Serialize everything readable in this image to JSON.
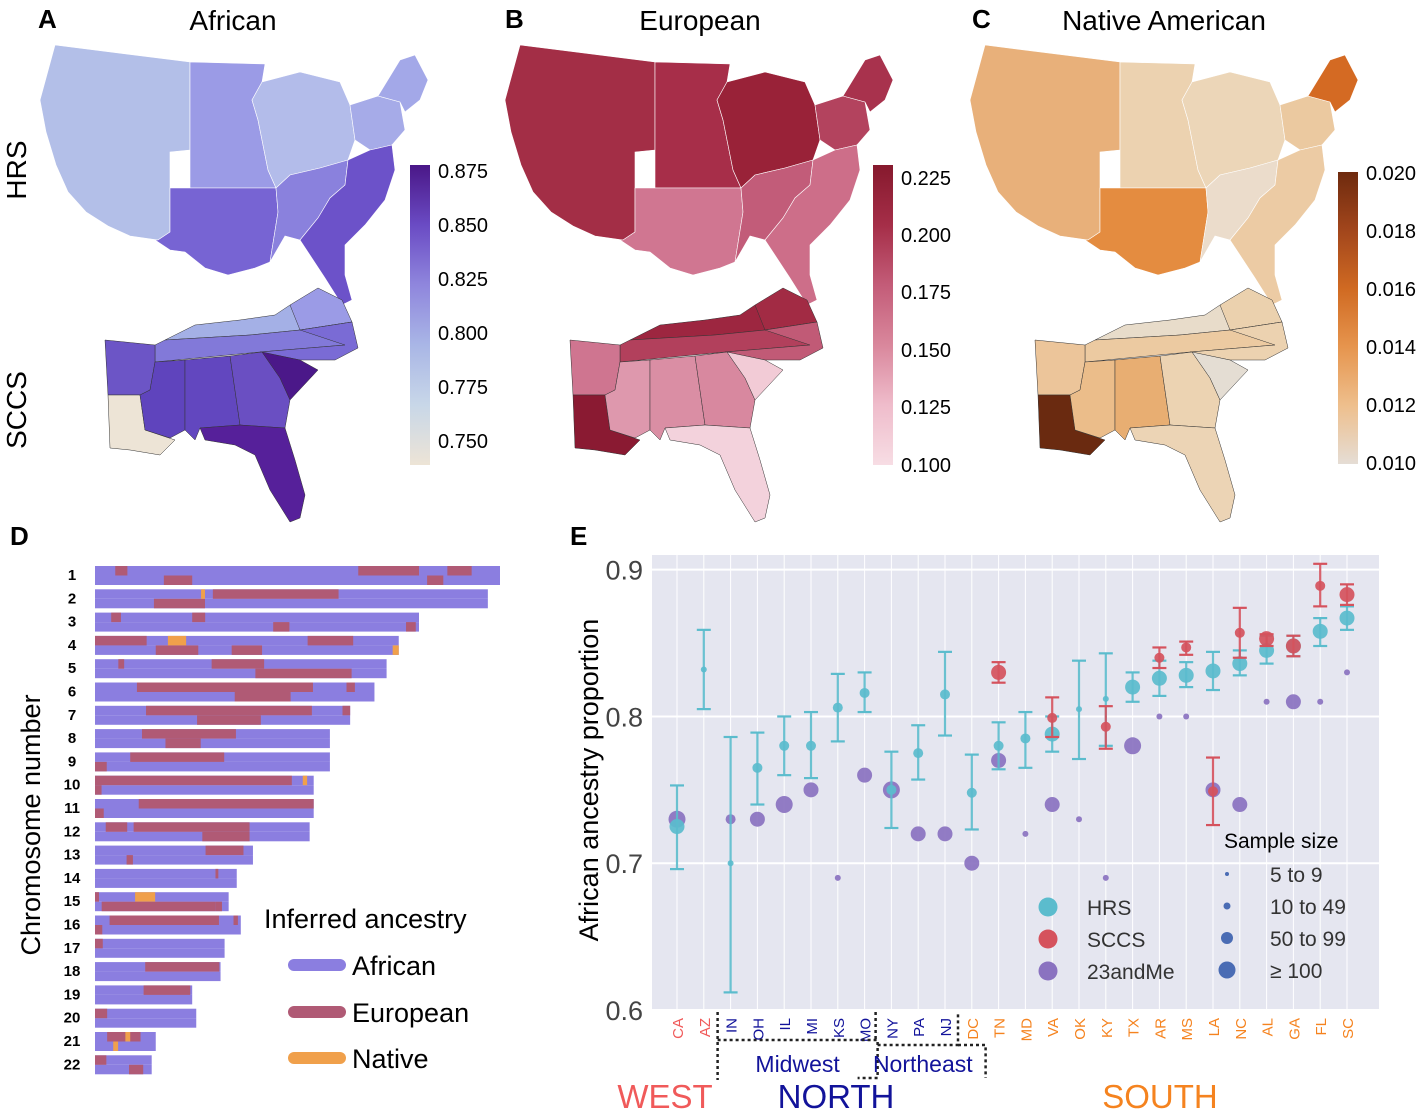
{
  "colors": {
    "african_bar": "#8b7ee0",
    "european_bar": "#b05a75",
    "native_bar": "#f0a04b",
    "hrs": "#5bbccd",
    "sccs": "#d5525d",
    "andme": "#8a72c0",
    "size_dot": "#4a6cb4",
    "west": "#f05a5a",
    "north": "#12139a",
    "south": "#f5831f",
    "plot_bg": "#e5e6f0"
  },
  "panels": {
    "a": {
      "letter": "A",
      "title": "African"
    },
    "b": {
      "letter": "B",
      "title": "European"
    },
    "c": {
      "letter": "C",
      "title": "Native American"
    },
    "d": {
      "letter": "D"
    },
    "e": {
      "letter": "E"
    }
  },
  "row_labels": {
    "hrs": "HRS",
    "sccs": "SCCS"
  },
  "colorbars": {
    "african": {
      "ticks": [
        "0.875",
        "0.850",
        "0.825",
        "0.800",
        "0.775",
        "0.750"
      ],
      "colors": [
        "#4a1787",
        "#6a4bc4",
        "#8f86dd",
        "#a9b6e6",
        "#c8d7e8",
        "#ede4d6"
      ]
    },
    "european": {
      "ticks": [
        "0.225",
        "0.200",
        "0.175",
        "0.150",
        "0.125",
        "0.100"
      ],
      "colors": [
        "#86192d",
        "#a52e48",
        "#c35c78",
        "#d9879c",
        "#efbccb",
        "#f7dde4"
      ]
    },
    "native": {
      "ticks": [
        "0.020",
        "0.018",
        "0.016",
        "0.014",
        "0.012",
        "0.010"
      ],
      "colors": [
        "#6e2a0e",
        "#a2461c",
        "#d06a22",
        "#e6954e",
        "#eebf8d",
        "#e5ddd5"
      ]
    }
  },
  "chromosome_panel": {
    "ylabel": "Chromosome number",
    "legend_title": "Inferred ancestry",
    "legend": [
      "African",
      "European",
      "Native"
    ],
    "chromosomes": [
      {
        "label": "1",
        "len": 1.0,
        "segs": [
          [
            0.65,
            0.8,
            "E"
          ],
          [
            0.82,
            0.86,
            "E"
          ],
          [
            0.05,
            0.08,
            "E"
          ],
          [
            0.17,
            0.24,
            "E"
          ],
          [
            0.87,
            0.93,
            "E"
          ]
        ]
      },
      {
        "label": "2",
        "len": 0.97,
        "segs": [
          [
            0.3,
            0.62,
            "E"
          ],
          [
            0.15,
            0.28,
            "E"
          ],
          [
            0.27,
            0.28,
            "N"
          ]
        ]
      },
      {
        "label": "3",
        "len": 0.8,
        "segs": [
          [
            0.05,
            0.08,
            "E"
          ],
          [
            0.55,
            0.6,
            "E"
          ],
          [
            0.3,
            0.34,
            "E"
          ],
          [
            0.96,
            0.99,
            "E"
          ]
        ]
      },
      {
        "label": "4",
        "len": 0.75,
        "segs": [
          [
            0.0,
            0.17,
            "E"
          ],
          [
            0.2,
            0.34,
            "E"
          ],
          [
            0.24,
            0.3,
            "N"
          ],
          [
            0.45,
            0.55,
            "E"
          ],
          [
            0.7,
            0.85,
            "E"
          ],
          [
            0.98,
            1.0,
            "N"
          ]
        ]
      },
      {
        "label": "5",
        "len": 0.72,
        "segs": [
          [
            0.4,
            0.58,
            "E"
          ],
          [
            0.55,
            0.88,
            "E"
          ],
          [
            0.08,
            0.1,
            "E"
          ]
        ]
      },
      {
        "label": "6",
        "len": 0.69,
        "segs": [
          [
            0.15,
            0.78,
            "E"
          ],
          [
            0.5,
            0.7,
            "E"
          ],
          [
            0.9,
            0.93,
            "E"
          ]
        ]
      },
      {
        "label": "7",
        "len": 0.63,
        "segs": [
          [
            0.2,
            0.85,
            "E"
          ],
          [
            0.4,
            0.65,
            "E"
          ],
          [
            0.97,
            1.0,
            "E"
          ]
        ]
      },
      {
        "label": "8",
        "len": 0.58,
        "segs": [
          [
            0.2,
            0.6,
            "E"
          ],
          [
            0.3,
            0.45,
            "E"
          ]
        ]
      },
      {
        "label": "9",
        "len": 0.58,
        "segs": [
          [
            0.15,
            0.55,
            "E"
          ],
          [
            0.0,
            0.05,
            "E"
          ]
        ]
      },
      {
        "label": "10",
        "len": 0.54,
        "segs": [
          [
            0.0,
            0.9,
            "E"
          ],
          [
            0.0,
            0.03,
            "E"
          ],
          [
            0.95,
            0.97,
            "N"
          ]
        ]
      },
      {
        "label": "11",
        "len": 0.54,
        "segs": [
          [
            0.2,
            1.0,
            "E"
          ],
          [
            0.0,
            0.04,
            "E"
          ]
        ]
      },
      {
        "label": "12",
        "len": 0.53,
        "segs": [
          [
            0.18,
            0.72,
            "E"
          ],
          [
            0.5,
            0.72,
            "E"
          ],
          [
            0.05,
            0.15,
            "E"
          ]
        ]
      },
      {
        "label": "13",
        "len": 0.39,
        "segs": [
          [
            0.7,
            0.94,
            "E"
          ],
          [
            0.2,
            0.24,
            "E"
          ]
        ]
      },
      {
        "label": "14",
        "len": 0.35,
        "segs": [
          [
            0.85,
            0.87,
            "E"
          ]
        ]
      },
      {
        "label": "15",
        "len": 0.33,
        "segs": [
          [
            0.3,
            0.45,
            "N"
          ],
          [
            0.05,
            0.9,
            "E"
          ],
          [
            0.0,
            0.03,
            "E"
          ],
          [
            0.9,
            0.95,
            "E"
          ]
        ]
      },
      {
        "label": "16",
        "len": 0.36,
        "segs": [
          [
            0.1,
            0.85,
            "E"
          ],
          [
            0.0,
            0.05,
            "E"
          ],
          [
            0.95,
            0.98,
            "E"
          ]
        ]
      },
      {
        "label": "17",
        "len": 0.32,
        "segs": [
          [
            0.0,
            0.06,
            "E"
          ]
        ]
      },
      {
        "label": "18",
        "len": 0.31,
        "segs": [
          [
            0.4,
            0.99,
            "E"
          ]
        ]
      },
      {
        "label": "19",
        "len": 0.24,
        "segs": [
          [
            0.5,
            0.98,
            "E"
          ]
        ]
      },
      {
        "label": "20",
        "len": 0.25,
        "segs": [
          [
            0.0,
            0.12,
            "E"
          ]
        ]
      },
      {
        "label": "21",
        "len": 0.15,
        "segs": [
          [
            0.2,
            0.75,
            "E"
          ],
          [
            0.3,
            0.38,
            "N"
          ],
          [
            0.5,
            0.58,
            "N"
          ]
        ]
      },
      {
        "label": "22",
        "len": 0.14,
        "segs": [
          [
            0.0,
            0.2,
            "E"
          ],
          [
            0.6,
            0.85,
            "E"
          ]
        ]
      }
    ]
  },
  "chart_data": {
    "type": "scatter",
    "ylabel": "African ancestry proportion",
    "ylim": [
      0.6,
      0.91
    ],
    "yticks": [
      "0.6",
      "0.7",
      "0.8",
      "0.9"
    ],
    "categories": [
      "CA",
      "AZ",
      "IN",
      "OH",
      "IL",
      "MI",
      "KS",
      "MO",
      "NY",
      "PA",
      "NJ",
      "DC",
      "TN",
      "MD",
      "VA",
      "OK",
      "KY",
      "TX",
      "AR",
      "MS",
      "LA",
      "NC",
      "AL",
      "GA",
      "FL",
      "SC"
    ],
    "category_region": [
      "W",
      "W",
      "N",
      "N",
      "N",
      "N",
      "N",
      "N",
      "N",
      "N",
      "N",
      "S",
      "S",
      "S",
      "S",
      "S",
      "S",
      "S",
      "S",
      "S",
      "S",
      "S",
      "S",
      "S",
      "S",
      "S"
    ],
    "regions": {
      "west": "WEST",
      "north": "NORTH",
      "south": "SOUTH",
      "midwest": "Midwest",
      "northeast": "Northeast"
    },
    "series": [
      {
        "name": "HRS",
        "points": [
          {
            "x": "CA",
            "y": 0.725,
            "lo": 0.696,
            "hi": 0.753,
            "size": 3
          },
          {
            "x": "AZ",
            "y": 0.832,
            "lo": 0.805,
            "hi": 0.859,
            "size": 1
          },
          {
            "x": "IN",
            "y": 0.7,
            "lo": 0.612,
            "hi": 0.786,
            "size": 1
          },
          {
            "x": "OH",
            "y": 0.765,
            "lo": 0.74,
            "hi": 0.789,
            "size": 2
          },
          {
            "x": "IL",
            "y": 0.78,
            "lo": 0.76,
            "hi": 0.8,
            "size": 2
          },
          {
            "x": "MI",
            "y": 0.78,
            "lo": 0.758,
            "hi": 0.803,
            "size": 2
          },
          {
            "x": "KS",
            "y": 0.806,
            "lo": 0.783,
            "hi": 0.829,
            "size": 2
          },
          {
            "x": "MO",
            "y": 0.816,
            "lo": 0.803,
            "hi": 0.83,
            "size": 2
          },
          {
            "x": "NY",
            "y": 0.75,
            "lo": 0.724,
            "hi": 0.776,
            "size": 2
          },
          {
            "x": "PA",
            "y": 0.775,
            "lo": 0.757,
            "hi": 0.794,
            "size": 2
          },
          {
            "x": "NJ",
            "y": 0.815,
            "lo": 0.787,
            "hi": 0.844,
            "size": 2
          },
          {
            "x": "DC",
            "y": 0.748,
            "lo": 0.723,
            "hi": 0.774,
            "size": 2
          },
          {
            "x": "TN",
            "y": 0.78,
            "lo": 0.764,
            "hi": 0.796,
            "size": 2
          },
          {
            "x": "MD",
            "y": 0.785,
            "lo": 0.765,
            "hi": 0.803,
            "size": 2
          },
          {
            "x": "VA",
            "y": 0.788,
            "lo": 0.776,
            "hi": 0.8,
            "size": 3
          },
          {
            "x": "OK",
            "y": 0.805,
            "lo": 0.771,
            "hi": 0.838,
            "size": 1
          },
          {
            "x": "KY",
            "y": 0.812,
            "lo": 0.78,
            "hi": 0.843,
            "size": 1
          },
          {
            "x": "TX",
            "y": 0.82,
            "lo": 0.81,
            "hi": 0.83,
            "size": 3
          },
          {
            "x": "AR",
            "y": 0.826,
            "lo": 0.814,
            "hi": 0.838,
            "size": 3
          },
          {
            "x": "MS",
            "y": 0.828,
            "lo": 0.82,
            "hi": 0.837,
            "size": 3
          },
          {
            "x": "LA",
            "y": 0.831,
            "lo": 0.818,
            "hi": 0.844,
            "size": 3
          },
          {
            "x": "NC",
            "y": 0.836,
            "lo": 0.828,
            "hi": 0.845,
            "size": 3
          },
          {
            "x": "AL",
            "y": 0.845,
            "lo": 0.836,
            "hi": 0.855,
            "size": 3
          },
          {
            "x": "GA",
            "y": 0.848,
            "lo": 0.841,
            "hi": 0.855,
            "size": 3
          },
          {
            "x": "FL",
            "y": 0.858,
            "lo": 0.848,
            "hi": 0.867,
            "size": 3
          },
          {
            "x": "SC",
            "y": 0.867,
            "lo": 0.859,
            "hi": 0.875,
            "size": 3
          }
        ]
      },
      {
        "name": "SCCS",
        "points": [
          {
            "x": "TN",
            "y": 0.83,
            "lo": 0.823,
            "hi": 0.837,
            "size": 3
          },
          {
            "x": "VA",
            "y": 0.799,
            "lo": 0.786,
            "hi": 0.813,
            "size": 2
          },
          {
            "x": "KY",
            "y": 0.793,
            "lo": 0.778,
            "hi": 0.807,
            "size": 2
          },
          {
            "x": "AR",
            "y": 0.84,
            "lo": 0.833,
            "hi": 0.847,
            "size": 2
          },
          {
            "x": "MS",
            "y": 0.847,
            "lo": 0.842,
            "hi": 0.851,
            "size": 2
          },
          {
            "x": "LA",
            "y": 0.749,
            "lo": 0.726,
            "hi": 0.772,
            "size": 2
          },
          {
            "x": "NC",
            "y": 0.857,
            "lo": 0.84,
            "hi": 0.874,
            "size": 2
          },
          {
            "x": "AL",
            "y": 0.853,
            "lo": 0.848,
            "hi": 0.856,
            "size": 3
          },
          {
            "x": "GA",
            "y": 0.848,
            "lo": 0.841,
            "hi": 0.855,
            "size": 3
          },
          {
            "x": "FL",
            "y": 0.889,
            "lo": 0.875,
            "hi": 0.904,
            "size": 2
          },
          {
            "x": "SC",
            "y": 0.883,
            "lo": 0.876,
            "hi": 0.89,
            "size": 3
          }
        ]
      },
      {
        "name": "23andMe",
        "points": [
          {
            "x": "CA",
            "y": 0.73,
            "size": 4
          },
          {
            "x": "IN",
            "y": 0.73,
            "size": 2
          },
          {
            "x": "OH",
            "y": 0.73,
            "size": 3
          },
          {
            "x": "IL",
            "y": 0.74,
            "size": 4
          },
          {
            "x": "MI",
            "y": 0.75,
            "size": 3
          },
          {
            "x": "KS",
            "y": 0.69,
            "size": 1
          },
          {
            "x": "MO",
            "y": 0.76,
            "size": 3
          },
          {
            "x": "NY",
            "y": 0.75,
            "size": 4
          },
          {
            "x": "PA",
            "y": 0.72,
            "size": 3
          },
          {
            "x": "NJ",
            "y": 0.72,
            "size": 3
          },
          {
            "x": "DC",
            "y": 0.7,
            "size": 3
          },
          {
            "x": "TN",
            "y": 0.77,
            "size": 3
          },
          {
            "x": "MD",
            "y": 0.72,
            "size": 1
          },
          {
            "x": "VA",
            "y": 0.74,
            "size": 3
          },
          {
            "x": "OK",
            "y": 0.73,
            "size": 1
          },
          {
            "x": "KY",
            "y": 0.69,
            "size": 1
          },
          {
            "x": "TX",
            "y": 0.78,
            "size": 4
          },
          {
            "x": "AR",
            "y": 0.8,
            "size": 1
          },
          {
            "x": "MS",
            "y": 0.8,
            "size": 1
          },
          {
            "x": "LA",
            "y": 0.75,
            "size": 3
          },
          {
            "x": "NC",
            "y": 0.74,
            "size": 3
          },
          {
            "x": "AL",
            "y": 0.81,
            "size": 1
          },
          {
            "x": "GA",
            "y": 0.81,
            "size": 3
          },
          {
            "x": "FL",
            "y": 0.81,
            "size": 1
          },
          {
            "x": "SC",
            "y": 0.83,
            "size": 1
          }
        ]
      }
    ],
    "legend_series": [
      "HRS",
      "SCCS",
      "23andMe"
    ],
    "size_legend_title": "Sample size",
    "size_legend": [
      "5 to 9",
      "10 to 49",
      "50 to 99",
      "≥  100"
    ]
  }
}
